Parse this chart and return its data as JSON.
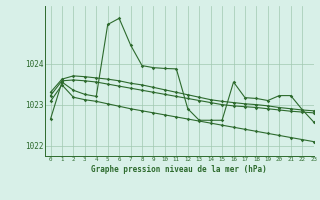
{
  "title": "Graphe pression niveau de la mer (hPa)",
  "background_color": "#d8f0e8",
  "plot_bg_color": "#d8f0e8",
  "grid_color": "#a0c8b0",
  "line_color": "#2d6a2d",
  "xlim": [
    -0.5,
    23
  ],
  "ylim": [
    1021.75,
    1025.4
  ],
  "yticks": [
    1022,
    1023,
    1024
  ],
  "xticks": [
    0,
    1,
    2,
    3,
    4,
    5,
    6,
    7,
    8,
    9,
    10,
    11,
    12,
    13,
    14,
    15,
    16,
    17,
    18,
    19,
    20,
    21,
    22,
    23
  ],
  "series": [
    [
      1022.65,
      1023.55,
      1023.35,
      1023.25,
      1023.2,
      1024.95,
      1025.1,
      1024.45,
      1023.95,
      1023.9,
      1023.88,
      1023.87,
      1022.9,
      1022.62,
      1022.62,
      1022.62,
      1023.55,
      1023.17,
      1023.15,
      1023.1,
      1023.22,
      1023.22,
      1022.88,
      1022.58
    ],
    [
      1023.3,
      1023.62,
      1023.7,
      1023.68,
      1023.65,
      1023.62,
      1023.58,
      1023.52,
      1023.48,
      1023.42,
      1023.36,
      1023.3,
      1023.24,
      1023.18,
      1023.12,
      1023.08,
      1023.05,
      1023.02,
      1023.0,
      1022.97,
      1022.93,
      1022.9,
      1022.87,
      1022.85
    ],
    [
      1023.22,
      1023.58,
      1023.6,
      1023.58,
      1023.55,
      1023.5,
      1023.45,
      1023.4,
      1023.35,
      1023.3,
      1023.25,
      1023.2,
      1023.15,
      1023.1,
      1023.05,
      1023.0,
      1022.97,
      1022.95,
      1022.93,
      1022.9,
      1022.87,
      1022.84,
      1022.82,
      1022.8
    ],
    [
      1023.08,
      1023.48,
      1023.18,
      1023.12,
      1023.08,
      1023.02,
      1022.96,
      1022.9,
      1022.85,
      1022.8,
      1022.75,
      1022.7,
      1022.65,
      1022.6,
      1022.55,
      1022.5,
      1022.45,
      1022.4,
      1022.35,
      1022.3,
      1022.25,
      1022.2,
      1022.15,
      1022.1
    ]
  ]
}
